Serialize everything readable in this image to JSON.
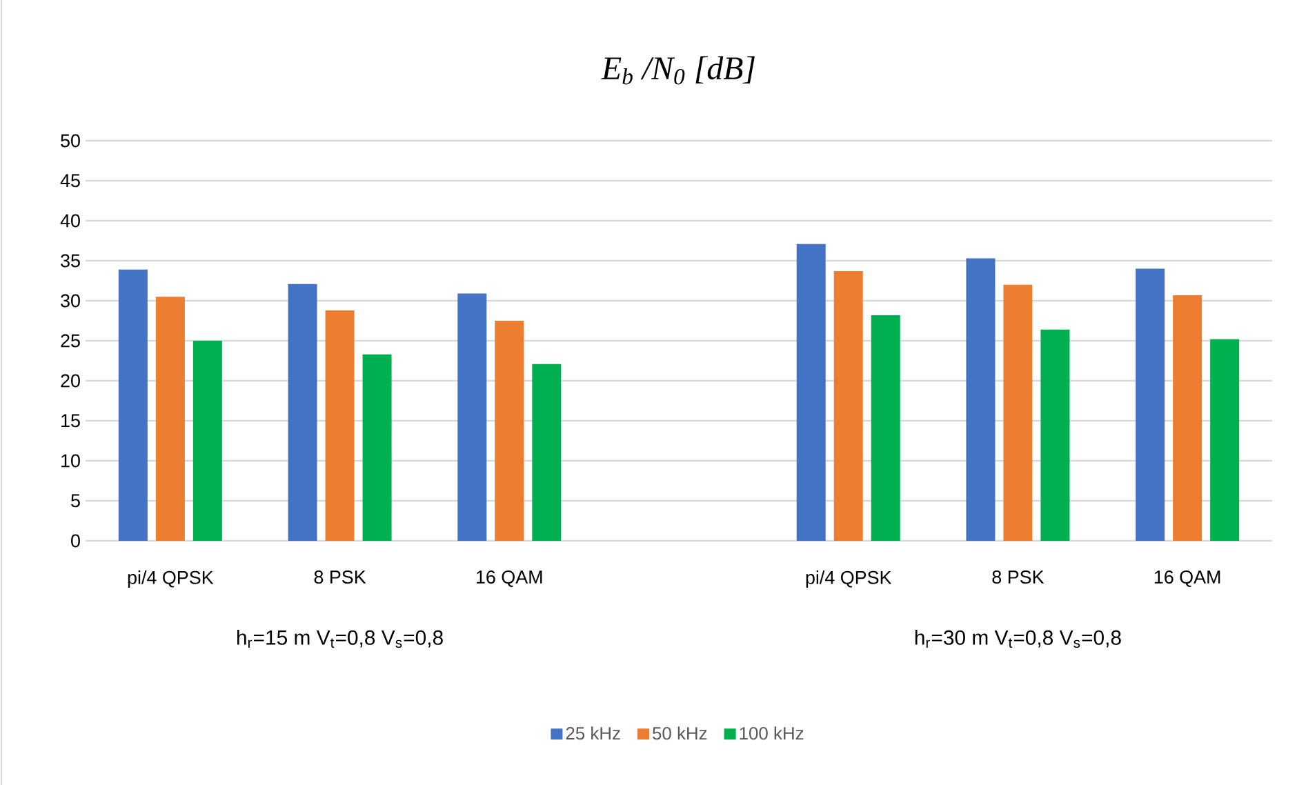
{
  "chart_data": {
    "type": "bar",
    "title": "E$_{b}$ /N$_{0}$ [dB]",
    "categories": [
      "pi/4 QPSK",
      "8 PSK",
      "16 QAM",
      null,
      "pi/4 QPSK",
      "8 PSK",
      "16 QAM"
    ],
    "series": [
      {
        "name": "25 kHz",
        "color": "#4472c4",
        "values": [
          33.9,
          32.1,
          30.9,
          null,
          37.1,
          35.3,
          34.0
        ]
      },
      {
        "name": "50 kHz",
        "color": "#ed7d31",
        "values": [
          30.5,
          28.8,
          27.5,
          null,
          33.7,
          32.0,
          30.7
        ]
      },
      {
        "name": "100 kHz",
        "color": "#00b050",
        "values": [
          25.0,
          23.3,
          22.1,
          null,
          28.2,
          26.4,
          25.2
        ]
      }
    ],
    "annotations": [
      "h$_{r}$=15 m V$_{t}$=0,8 V$_{s}$=0,8",
      "h$_{r}$=30 m V$_{t}$=0,8 V$_{s}$=0,8"
    ],
    "ylim": [
      0,
      50
    ],
    "yticks": [
      0,
      5,
      10,
      15,
      20,
      25,
      30,
      35,
      40,
      45,
      50
    ],
    "grid": "y",
    "legend": "bottom"
  }
}
